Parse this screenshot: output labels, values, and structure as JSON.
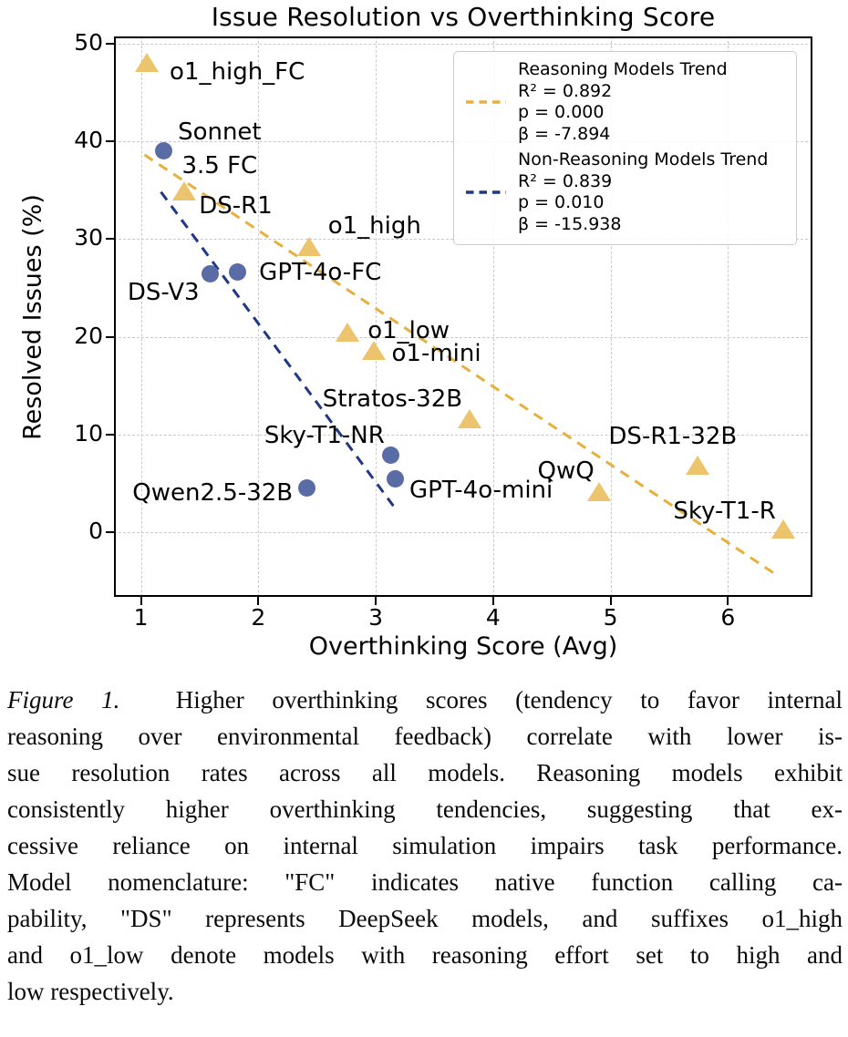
{
  "chart_data": {
    "type": "scatter",
    "title": "Issue Resolution vs Overthinking Score",
    "xlabel": "Overthinking Score (Avg)",
    "ylabel": "Resolved Issues (%)",
    "xlim": [
      0.77,
      6.72
    ],
    "ylim": [
      -6.6,
      50.7
    ],
    "x_ticks": [
      1,
      2,
      3,
      4,
      5,
      6
    ],
    "y_ticks": [
      0,
      10,
      20,
      30,
      40,
      50
    ],
    "grid": true,
    "legend_position": "upper right",
    "series": [
      {
        "name": "Reasoning Models",
        "marker": "triangle",
        "color": "#ECC46E",
        "points": [
          {
            "label": "o1_high_FC",
            "x": 1.05,
            "y": 47.7,
            "label_align": "left",
            "label_dx": 25,
            "label_dy": -8
          },
          {
            "label": "DS-R1",
            "x": 1.37,
            "y": 34.6,
            "label_align": "left",
            "label_dx": 16,
            "label_dy": -2
          },
          {
            "label": "o1_high",
            "x": 2.43,
            "y": 28.9,
            "label_align": "left",
            "label_dx": 21,
            "label_dy": -41
          },
          {
            "label": "o1_low",
            "x": 2.76,
            "y": 20.1,
            "label_align": "left",
            "label_dx": 22,
            "label_dy": -20
          },
          {
            "label": "o1-mini",
            "x": 2.98,
            "y": 18.3,
            "label_align": "left",
            "label_dx": 20,
            "label_dy": -15
          },
          {
            "label": "Stratos-32B",
            "x": 3.8,
            "y": 11.3,
            "label_align": "right",
            "label_dx": -8,
            "label_dy": -40
          },
          {
            "label": "QwQ",
            "x": 4.9,
            "y": 3.8,
            "label_align": "right",
            "label_dx": -5,
            "label_dy": -41
          },
          {
            "label": "DS-R1-32B",
            "x": 5.74,
            "y": 6.5,
            "label_align": "center",
            "label_dx": -27,
            "label_dy": -50
          },
          {
            "label": "Sky-T1-R",
            "x": 6.47,
            "y": 0.0,
            "label_align": "right",
            "label_dx": -8,
            "label_dy": -38
          }
        ]
      },
      {
        "name": "Non-Reasoning Models",
        "marker": "circle",
        "color": "#5A6CA6",
        "points": [
          {
            "label": "Sonnet 3.5 FC",
            "label_lines": [
              "Sonnet",
              "3.5 FC"
            ],
            "x": 1.19,
            "y": 39.0,
            "label_align": "left",
            "label_dx": 16,
            "label_dy": -39
          },
          {
            "label": "DS-V3",
            "x": 1.59,
            "y": 26.4,
            "label_align": "right",
            "label_dx": -12,
            "label_dy": 5
          },
          {
            "label": "GPT-4o-FC",
            "x": 1.82,
            "y": 26.6,
            "label_align": "left",
            "label_dx": 24,
            "label_dy": -15
          },
          {
            "label": "Qwen2.5-32B",
            "x": 2.41,
            "y": 4.5,
            "label_align": "right",
            "label_dx": -15,
            "label_dy": -10
          },
          {
            "label": "Sky-T1-NR",
            "x": 3.13,
            "y": 7.9,
            "label_align": "right",
            "label_dx": -7,
            "label_dy": -36
          },
          {
            "label": "GPT-4o-mini",
            "x": 3.17,
            "y": 5.5,
            "label_align": "left",
            "label_dx": 15,
            "label_dy": -2
          }
        ]
      }
    ],
    "trend_lines": [
      {
        "name": "Reasoning Models Trend",
        "color": "#E8AF3D",
        "style": "dashed",
        "r2": 0.892,
        "p": 0.0,
        "beta": -7.894,
        "x1": 1.03,
        "y1": 38.6,
        "x2": 6.42,
        "y2": -4.4
      },
      {
        "name": "Non-Reasoning Models Trend",
        "color": "#1E3787",
        "style": "dashed",
        "r2": 0.839,
        "p": 0.01,
        "beta": -15.938,
        "x1": 1.17,
        "y1": 34.8,
        "x2": 3.15,
        "y2": 2.7
      }
    ]
  },
  "legend": {
    "entries": [
      {
        "name": "Reasoning Models Trend",
        "r2_text": "R² = 0.892",
        "p_text": "p = 0.000",
        "beta_text": "β = -7.894",
        "color": "#E8AF3D"
      },
      {
        "name": "Non-Reasoning Models Trend",
        "r2_text": "R² = 0.839",
        "p_text": "p = 0.010",
        "beta_text": "β = -15.938",
        "color": "#1E3787"
      }
    ]
  },
  "caption": {
    "label": "Figure 1.",
    "lines": [
      "Higher overthinking scores (tendency to favor internal",
      "reasoning over environmental feedback) correlate with lower is-",
      "sue resolution rates across all models. Reasoning models exhibit",
      "consistently higher overthinking tendencies, suggesting that ex-",
      "cessive reliance on internal simulation impairs task performance.",
      "Model nomenclature: \"FC\" indicates native function calling ca-",
      "pability, \"DS\" represents DeepSeek models, and suffixes o1_high",
      "and o1_low denote models with reasoning effort set to high and",
      "low respectively."
    ]
  },
  "colors": {
    "grid": "#c9c9c9",
    "axis": "#000000",
    "legend_border": "#cccccc",
    "text": "#000000"
  }
}
